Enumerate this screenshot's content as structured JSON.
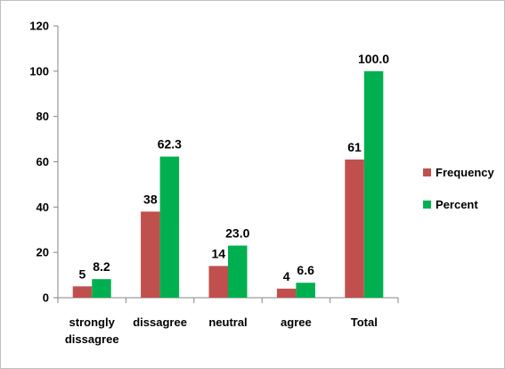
{
  "chart_data": {
    "type": "bar",
    "title": "",
    "xlabel": "",
    "ylabel": "",
    "ylim": [
      0,
      120
    ],
    "yticks": [
      0,
      20,
      40,
      60,
      80,
      100,
      120
    ],
    "categories": [
      [
        "strongly",
        "dissagree"
      ],
      [
        "dissagree"
      ],
      [
        "neutral"
      ],
      [
        "agree"
      ],
      [
        "Total"
      ]
    ],
    "series": [
      {
        "name": "Frequency",
        "color": "#c0504d",
        "values": [
          5,
          38,
          14,
          4,
          61
        ],
        "labels": [
          "5",
          "38",
          "14",
          "4",
          "61"
        ]
      },
      {
        "name": "Percent",
        "color": "#00b050",
        "values": [
          8.2,
          62.3,
          23.0,
          6.6,
          100.0
        ],
        "labels": [
          "8.2",
          "62.3",
          "23.0",
          "6.6",
          "100.0"
        ]
      }
    ],
    "grid": false,
    "legend_position": "right"
  }
}
